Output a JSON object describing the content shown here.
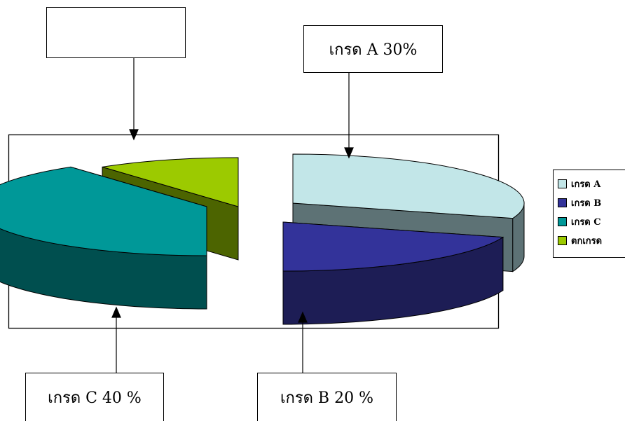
{
  "chart_data": {
    "type": "pie",
    "categories": [
      "เกรด A",
      "เกรด B",
      "เกรด C",
      "ตกเกรด"
    ],
    "values": [
      30,
      20,
      40,
      10
    ],
    "colors": [
      "#c2e6e8",
      "#33339a",
      "#009898",
      "#9cca00"
    ],
    "side_colors": [
      "#5d7275",
      "#1d1d55",
      "#004f4f",
      "#4c6400"
    ],
    "title": "",
    "legend_placement": "right"
  },
  "callouts": {
    "a": "เกรด A 30%",
    "b": "เกรด B 20 %",
    "c": "เกรด C 40 %",
    "empty": ""
  }
}
